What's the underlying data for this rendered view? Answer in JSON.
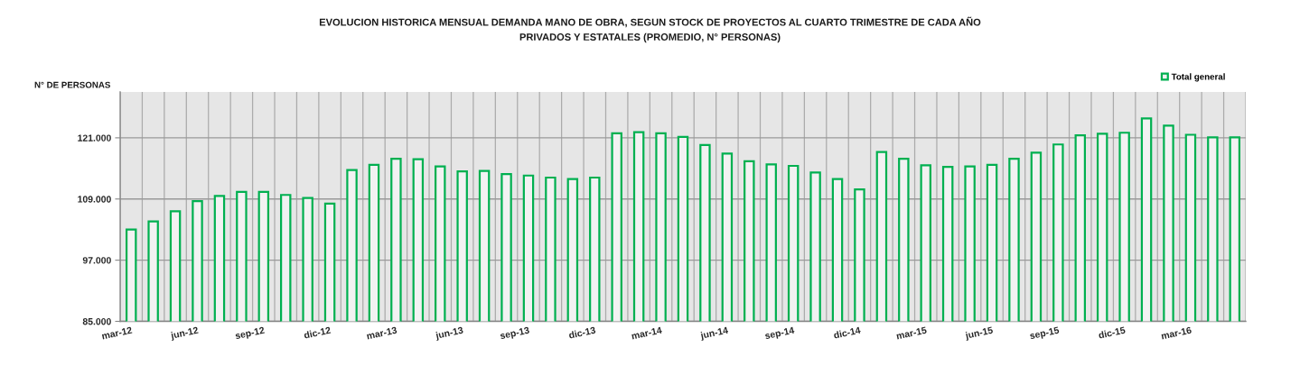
{
  "chart_data": {
    "type": "bar",
    "title": "EVOLUCION HISTORICA MENSUAL DEMANDA MANO DE OBRA, SEGUN STOCK DE PROYECTOS AL CUARTO TRIMESTRE DE CADA AÑO",
    "subtitle": "PRIVADOS Y ESTATALES (PROMEDIO, N° PERSONAS)",
    "ylabel": "N° DE PERSONAS",
    "categories": [
      "mar-12",
      null,
      null,
      "jun-12",
      null,
      null,
      "sep-12",
      null,
      null,
      "dic-12",
      null,
      null,
      "mar-13",
      null,
      null,
      "jun-13",
      null,
      null,
      "sep-13",
      null,
      null,
      "dic-13",
      null,
      null,
      "mar-14",
      null,
      null,
      "jun-14",
      null,
      null,
      "sep-14",
      null,
      null,
      "dic-14",
      null,
      null,
      "mar-15",
      null,
      null,
      "jun-15",
      null,
      null,
      "sep-15",
      null,
      null,
      "dic-15",
      null,
      null,
      "mar-16",
      null,
      null
    ],
    "series": [
      {
        "name": "Total general",
        "color": "#00b050",
        "values": [
          103000,
          104600,
          106600,
          108600,
          109600,
          110400,
          110400,
          109800,
          109200,
          108100,
          114700,
          115700,
          116900,
          116800,
          115400,
          114400,
          114500,
          113900,
          113600,
          113200,
          112900,
          113200,
          121900,
          122100,
          121900,
          121200,
          119600,
          117900,
          116400,
          115800,
          115500,
          114200,
          112900,
          110900,
          118200,
          116900,
          115600,
          115300,
          115400,
          115700,
          116900,
          118100,
          119700,
          121500,
          121800,
          122000,
          124800,
          123400,
          121600,
          121100,
          121100
        ]
      }
    ],
    "ylim": [
      85000,
      130000
    ],
    "yticks": [
      {
        "value": 85000,
        "label": "85.000"
      },
      {
        "value": 97000,
        "label": "97.000"
      },
      {
        "value": 109000,
        "label": "109.000"
      },
      {
        "value": 121000,
        "label": "121.000"
      }
    ],
    "grid": true,
    "legend": "top right"
  }
}
